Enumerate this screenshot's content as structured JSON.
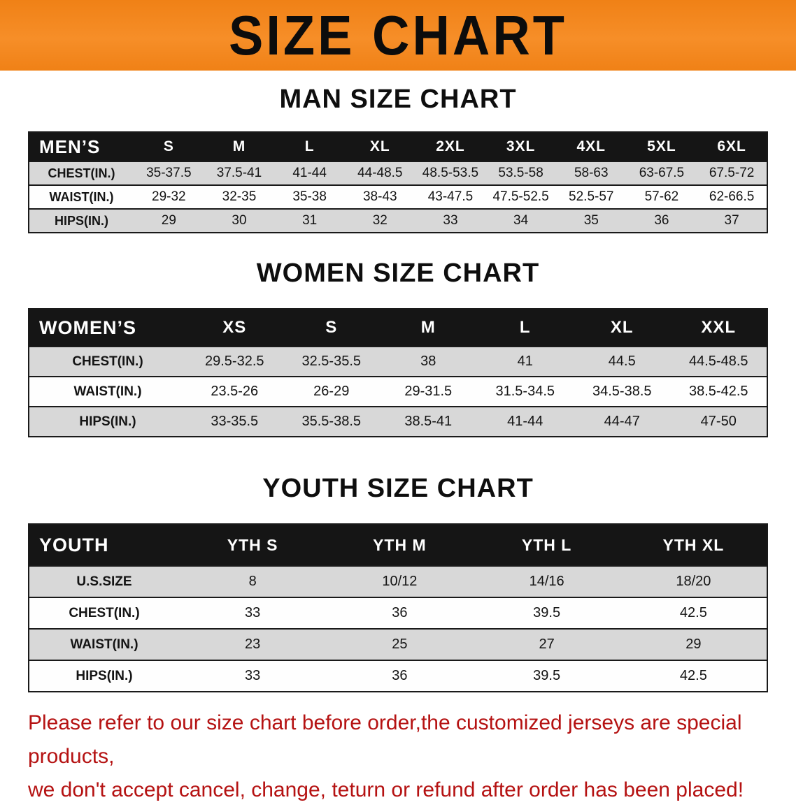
{
  "banner": {
    "title": "SIZE CHART"
  },
  "colors": {
    "banner_bg": "#f3821c",
    "header_row_bg": "#151515",
    "row_shade": "#d8d8d8",
    "disclaimer_text": "#b51212"
  },
  "sections": [
    {
      "heading": "MAN SIZE CHART",
      "table": {
        "header": [
          "MEN’S",
          "S",
          "M",
          "L",
          "XL",
          "2XL",
          "3XL",
          "4XL",
          "5XL",
          "6XL"
        ],
        "rows": [
          {
            "label": "CHEST(IN.)",
            "values": [
              "35-37.5",
              "37.5-41",
              "41-44",
              "44-48.5",
              "48.5-53.5",
              "53.5-58",
              "58-63",
              "63-67.5",
              "67.5-72"
            ]
          },
          {
            "label": "WAIST(IN.)",
            "values": [
              "29-32",
              "32-35",
              "35-38",
              "38-43",
              "43-47.5",
              "47.5-52.5",
              "52.5-57",
              "57-62",
              "62-66.5"
            ]
          },
          {
            "label": "HIPS(IN.)",
            "values": [
              "29",
              "30",
              "31",
              "32",
              "33",
              "34",
              "35",
              "36",
              "37"
            ]
          }
        ]
      }
    },
    {
      "heading": "WOMEN SIZE CHART",
      "table": {
        "header": [
          "WOMEN’S",
          "XS",
          "S",
          "M",
          "L",
          "XL",
          "XXL"
        ],
        "rows": [
          {
            "label": "CHEST(IN.)",
            "values": [
              "29.5-32.5",
              "32.5-35.5",
              "38",
              "41",
              "44.5",
              "44.5-48.5"
            ]
          },
          {
            "label": "WAIST(IN.)",
            "values": [
              "23.5-26",
              "26-29",
              "29-31.5",
              "31.5-34.5",
              "34.5-38.5",
              "38.5-42.5"
            ]
          },
          {
            "label": "HIPS(IN.)",
            "values": [
              "33-35.5",
              "35.5-38.5",
              "38.5-41",
              "41-44",
              "44-47",
              "47-50"
            ]
          }
        ]
      }
    },
    {
      "heading": "YOUTH SIZE CHART",
      "table": {
        "header": [
          "YOUTH",
          "YTH S",
          "YTH M",
          "YTH L",
          "YTH XL"
        ],
        "rows": [
          {
            "label": "U.S.SIZE",
            "values": [
              "8",
              "10/12",
              "14/16",
              "18/20"
            ]
          },
          {
            "label": "CHEST(IN.)",
            "values": [
              "33",
              "36",
              "39.5",
              "42.5"
            ]
          },
          {
            "label": "WAIST(IN.)",
            "values": [
              "23",
              "25",
              "27",
              "29"
            ]
          },
          {
            "label": "HIPS(IN.)",
            "values": [
              "33",
              "36",
              "39.5",
              "42.5"
            ]
          }
        ]
      }
    }
  ],
  "disclaimer": {
    "lines": [
      "Please refer to our size chart before order,the customized jerseys are special products,",
      "we don't accept cancel, change, teturn or refund after order has been placed!"
    ]
  }
}
